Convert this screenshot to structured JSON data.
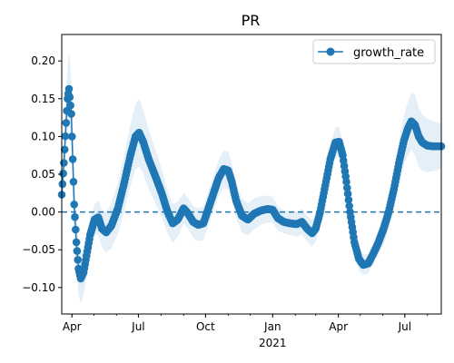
{
  "colors": {
    "line": "#1f77b4",
    "band": "#c6dbef",
    "frame": "#000000"
  },
  "chart_data": {
    "type": "line",
    "title": "PR",
    "xlabel": "",
    "ylabel": "",
    "xlim": [
      "2020-03-18",
      "2021-08-20"
    ],
    "ylim": [
      -0.135,
      0.235
    ],
    "x_ticks": [
      {
        "date": "2020-04-01",
        "label": "Apr"
      },
      {
        "date": "2020-07-01",
        "label": "Jul"
      },
      {
        "date": "2020-10-01",
        "label": "Oct"
      },
      {
        "date": "2021-01-01",
        "label": "Jan",
        "sublabel": "2021"
      },
      {
        "date": "2021-04-01",
        "label": "Apr"
      },
      {
        "date": "2021-07-01",
        "label": "Jul"
      }
    ],
    "y_ticks": [
      {
        "value": -0.1,
        "label": "−0.10"
      },
      {
        "value": -0.05,
        "label": "−0.05"
      },
      {
        "value": 0.0,
        "label": "0.00"
      },
      {
        "value": 0.05,
        "label": "0.05"
      },
      {
        "value": 0.1,
        "label": "0.10"
      },
      {
        "value": 0.15,
        "label": "0.15"
      },
      {
        "value": 0.2,
        "label": "0.20"
      }
    ],
    "reference_line": {
      "y": 0.0,
      "style": "dashed"
    },
    "legend": {
      "placement": "top-right",
      "entries": [
        "growth_rate"
      ]
    },
    "series": [
      {
        "name": "growth_rate",
        "marker": "circle",
        "band_halfwidth": [
          [
            "2020-03-18",
            0.015
          ],
          [
            "2020-03-28",
            0.05
          ],
          [
            "2020-04-10",
            0.035
          ],
          [
            "2020-05-01",
            0.02
          ],
          [
            "2020-07-01",
            0.045
          ],
          [
            "2020-09-01",
            0.02
          ],
          [
            "2020-11-01",
            0.025
          ],
          [
            "2021-01-15",
            0.015
          ],
          [
            "2021-04-01",
            0.02
          ],
          [
            "2021-05-15",
            0.012
          ],
          [
            "2021-07-15",
            0.04
          ],
          [
            "2021-08-20",
            0.03
          ]
        ],
        "points": [
          [
            "2020-03-18",
            0.023
          ],
          [
            "2020-03-21",
            0.065
          ],
          [
            "2020-03-24",
            0.118
          ],
          [
            "2020-03-26",
            0.15
          ],
          [
            "2020-03-28",
            0.163
          ],
          [
            "2020-03-31",
            0.13
          ],
          [
            "2020-04-02",
            0.07
          ],
          [
            "2020-04-04",
            0.01
          ],
          [
            "2020-04-07",
            -0.04
          ],
          [
            "2020-04-10",
            -0.075
          ],
          [
            "2020-04-13",
            -0.088
          ],
          [
            "2020-04-17",
            -0.08
          ],
          [
            "2020-04-21",
            -0.058
          ],
          [
            "2020-04-26",
            -0.03
          ],
          [
            "2020-05-02",
            -0.01
          ],
          [
            "2020-05-07",
            -0.007
          ],
          [
            "2020-05-12",
            -0.022
          ],
          [
            "2020-05-18",
            -0.027
          ],
          [
            "2020-05-25",
            -0.018
          ],
          [
            "2020-06-03",
            0.005
          ],
          [
            "2020-06-12",
            0.04
          ],
          [
            "2020-06-20",
            0.075
          ],
          [
            "2020-06-27",
            0.1
          ],
          [
            "2020-07-02",
            0.105
          ],
          [
            "2020-07-08",
            0.092
          ],
          [
            "2020-07-15",
            0.07
          ],
          [
            "2020-07-24",
            0.048
          ],
          [
            "2020-08-02",
            0.025
          ],
          [
            "2020-08-10",
            0.0
          ],
          [
            "2020-08-17",
            -0.015
          ],
          [
            "2020-08-24",
            -0.01
          ],
          [
            "2020-09-01",
            0.005
          ],
          [
            "2020-09-07",
            -0.002
          ],
          [
            "2020-09-14",
            -0.013
          ],
          [
            "2020-09-21",
            -0.017
          ],
          [
            "2020-09-28",
            -0.015
          ],
          [
            "2020-10-05",
            0.005
          ],
          [
            "2020-10-12",
            0.025
          ],
          [
            "2020-10-19",
            0.045
          ],
          [
            "2020-10-26",
            0.057
          ],
          [
            "2020-11-01",
            0.055
          ],
          [
            "2020-11-06",
            0.04
          ],
          [
            "2020-11-12",
            0.015
          ],
          [
            "2020-11-20",
            -0.005
          ],
          [
            "2020-11-28",
            -0.01
          ],
          [
            "2020-12-07",
            -0.002
          ],
          [
            "2020-12-16",
            0.002
          ],
          [
            "2020-12-25",
            0.004
          ],
          [
            "2021-01-01",
            0.003
          ],
          [
            "2021-01-08",
            -0.008
          ],
          [
            "2021-01-16",
            -0.013
          ],
          [
            "2021-01-25",
            -0.015
          ],
          [
            "2021-02-03",
            -0.016
          ],
          [
            "2021-02-10",
            -0.013
          ],
          [
            "2021-02-17",
            -0.022
          ],
          [
            "2021-02-24",
            -0.028
          ],
          [
            "2021-03-01",
            -0.022
          ],
          [
            "2021-03-07",
            0.0
          ],
          [
            "2021-03-14",
            0.035
          ],
          [
            "2021-03-21",
            0.07
          ],
          [
            "2021-03-28",
            0.092
          ],
          [
            "2021-04-02",
            0.093
          ],
          [
            "2021-04-07",
            0.075
          ],
          [
            "2021-04-12",
            0.04
          ],
          [
            "2021-04-17",
            0.0
          ],
          [
            "2021-04-23",
            -0.04
          ],
          [
            "2021-04-29",
            -0.062
          ],
          [
            "2021-05-05",
            -0.07
          ],
          [
            "2021-05-12",
            -0.068
          ],
          [
            "2021-05-19",
            -0.055
          ],
          [
            "2021-05-26",
            -0.04
          ],
          [
            "2021-06-02",
            -0.022
          ],
          [
            "2021-06-09",
            0.0
          ],
          [
            "2021-06-16",
            0.03
          ],
          [
            "2021-06-23",
            0.065
          ],
          [
            "2021-06-30",
            0.095
          ],
          [
            "2021-07-05",
            0.11
          ],
          [
            "2021-07-10",
            0.12
          ],
          [
            "2021-07-15",
            0.115
          ],
          [
            "2021-07-20",
            0.1
          ],
          [
            "2021-07-25",
            0.092
          ],
          [
            "2021-08-01",
            0.088
          ],
          [
            "2021-08-08",
            0.087
          ],
          [
            "2021-08-20",
            0.087
          ]
        ]
      }
    ]
  }
}
